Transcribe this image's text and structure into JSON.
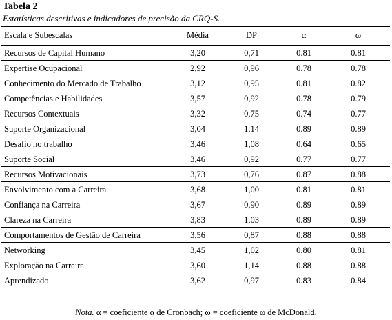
{
  "title": "Tabela 2",
  "subtitle": "Estatísticas descritivas e indicadores de precisão da CRQ-S.",
  "table": {
    "header": [
      "Escala e Subescalas",
      "Média",
      "DP",
      "α",
      "ω"
    ],
    "groups": [
      {
        "rows": [
          [
            "Recursos de Capital Humano",
            "3,20",
            "0,71",
            "0.81",
            "0.81"
          ]
        ]
      },
      {
        "rows": [
          [
            "Expertise Ocupacional",
            "2,92",
            "0,96",
            "0.78",
            "0.78"
          ],
          [
            "Conhecimento do Mercado de Trabalho",
            "3,12",
            "0,95",
            "0.81",
            "0.82"
          ],
          [
            "Competências e Habilidades",
            "3,57",
            "0,92",
            "0.78",
            "0.79"
          ]
        ]
      },
      {
        "rows": [
          [
            "Recursos Contextuais",
            "3,32",
            "0,75",
            "0.74",
            "0.77"
          ]
        ]
      },
      {
        "rows": [
          [
            "Suporte Organizacional",
            "3,04",
            "1,14",
            "0.89",
            "0.89"
          ],
          [
            "Desafio no trabalho",
            "3,46",
            "1,08",
            "0.64",
            "0.65"
          ],
          [
            "Suporte Social",
            "3,46",
            "0,92",
            "0.77",
            "0.77"
          ]
        ]
      },
      {
        "rows": [
          [
            "Recursos Motivacionais",
            "3,73",
            "0,76",
            "0.87",
            "0.88"
          ]
        ]
      },
      {
        "rows": [
          [
            "Envolvimento com a Carreira",
            "3,68",
            "1,00",
            "0.81",
            "0.81"
          ],
          [
            "Confiança na Carreira",
            "3,67",
            "0,90",
            "0.89",
            "0.89"
          ],
          [
            "Clareza na Carreira",
            "3,83",
            "1,03",
            "0.89",
            "0.89"
          ]
        ]
      },
      {
        "rows": [
          [
            "Comportamentos de Gestão de Carreira",
            "3,56",
            "0,87",
            "0.88",
            "0.88"
          ]
        ]
      },
      {
        "rows": [
          [
            "Networking",
            "3,45",
            "1,02",
            "0.80",
            "0.81"
          ],
          [
            "Exploração na Carreira",
            "3,60",
            "1,14",
            "0.88",
            "0.88"
          ],
          [
            "Aprendizado",
            "3,62",
            "0,97",
            "0.83",
            "0.84"
          ]
        ]
      }
    ]
  },
  "note": {
    "label": "Nota.",
    "text": "α = coeficiente α de Cronbach; ω = coeficiente ω de McDonald."
  }
}
